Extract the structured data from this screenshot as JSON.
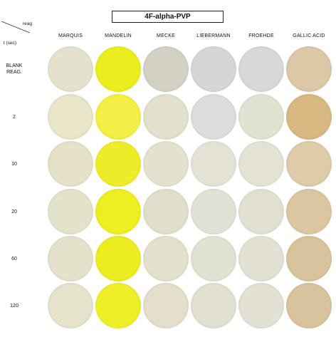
{
  "title": "4F-alpha-PVP",
  "corner": {
    "reag_label": "reag",
    "time_label": "t (sec)"
  },
  "columns": [
    "MARQUIS",
    "MANDELIN",
    "MECKE",
    "LIEBERMANN",
    "FROEHDE",
    "GALLIC ACID"
  ],
  "rows": [
    {
      "label": "BLANK\nREAG.",
      "colors": [
        "#e4e2cc",
        "#eced1c",
        "#d3d1c3",
        "#d5d6d7",
        "#d9d8d8",
        "#dcc7a7"
      ]
    },
    {
      "label": "2",
      "colors": [
        "#e9e5c8",
        "#f3ef44",
        "#e3e0cc",
        "#dddedb",
        "#dfe3d1",
        "#d8b880"
      ]
    },
    {
      "label": "10",
      "colors": [
        "#e5e2c9",
        "#eeec28",
        "#e5e1cf",
        "#e4e2d4",
        "#e4e2d4",
        "#ddcbaa"
      ]
    },
    {
      "label": "20",
      "colors": [
        "#e3e2ca",
        "#edef20",
        "#e1dfcb",
        "#e1e1d5",
        "#e1e0d3",
        "#dcc6a0"
      ]
    },
    {
      "label": "60",
      "colors": [
        "#e4e2cb",
        "#eded22",
        "#e3e0cb",
        "#e1e1d4",
        "#e2e1d4",
        "#d9c39c"
      ]
    },
    {
      "label": "120",
      "colors": [
        "#e5e3cc",
        "#eeef28",
        "#e3dfcb",
        "#e1e0d3",
        "#e3e1d3",
        "#d8c39e"
      ]
    }
  ]
}
